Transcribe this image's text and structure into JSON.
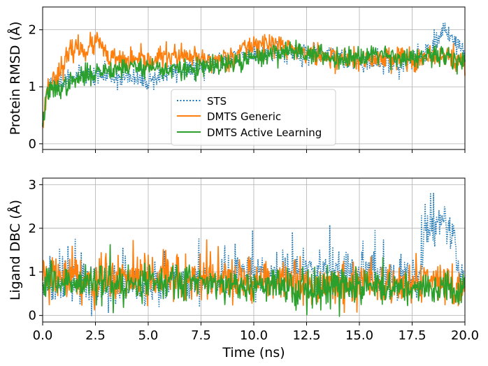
{
  "chart_data": [
    {
      "type": "line",
      "panel": "top",
      "ylabel": "Protein RMSD (Å)",
      "xlim": [
        0,
        20
      ],
      "ylim": [
        -0.1,
        2.4
      ],
      "yticks": [
        0,
        1,
        2
      ],
      "ytick_labels": [
        "0",
        "1",
        "2"
      ],
      "xticks": [
        0,
        2.5,
        5,
        7.5,
        10,
        12.5,
        15,
        17.5,
        20
      ],
      "grid": true,
      "legend_position": "lower-center",
      "legend": [
        "STS",
        "DMTS Generic",
        "DMTS Active Learning"
      ],
      "series": [
        {
          "name": "STS",
          "color": "#1f77b4",
          "style": "dotted",
          "noise": 0.09,
          "seed": 11,
          "x": [
            0,
            0.2,
            1,
            2,
            3,
            4,
            5,
            6,
            7,
            8,
            9,
            10,
            11,
            12,
            13,
            14,
            15,
            16,
            17,
            18,
            18.8,
            19,
            19.5,
            20
          ],
          "values": [
            0.3,
            1.0,
            1.15,
            1.2,
            1.2,
            1.15,
            1.1,
            1.25,
            1.3,
            1.4,
            1.55,
            1.55,
            1.65,
            1.6,
            1.55,
            1.55,
            1.45,
            1.45,
            1.4,
            1.55,
            1.85,
            2.05,
            1.8,
            1.6
          ]
        },
        {
          "name": "DMTS Generic",
          "color": "#ff7f0e",
          "style": "solid",
          "noise": 0.1,
          "seed": 23,
          "x": [
            0,
            0.2,
            1,
            1.5,
            2,
            2.7,
            3,
            4,
            5,
            6,
            7,
            8,
            9,
            10,
            11,
            12,
            13,
            14,
            15,
            16,
            17,
            18,
            19,
            20
          ],
          "values": [
            0.3,
            0.95,
            1.4,
            1.7,
            1.65,
            1.8,
            1.5,
            1.45,
            1.45,
            1.55,
            1.5,
            1.45,
            1.55,
            1.75,
            1.75,
            1.65,
            1.55,
            1.5,
            1.45,
            1.5,
            1.55,
            1.45,
            1.55,
            1.4
          ]
        },
        {
          "name": "DMTS Active Learning",
          "color": "#2ca02c",
          "style": "solid",
          "noise": 0.09,
          "seed": 37,
          "x": [
            0,
            0.2,
            1,
            2,
            3,
            4,
            5,
            6,
            7,
            8,
            9,
            10,
            11,
            12,
            13,
            14,
            15,
            16,
            17,
            18,
            19,
            20
          ],
          "values": [
            0.3,
            0.9,
            1.0,
            1.2,
            1.3,
            1.35,
            1.35,
            1.3,
            1.3,
            1.35,
            1.4,
            1.5,
            1.6,
            1.65,
            1.55,
            1.5,
            1.55,
            1.6,
            1.5,
            1.5,
            1.55,
            1.45
          ]
        }
      ]
    },
    {
      "type": "line",
      "panel": "bottom",
      "ylabel": "Ligand DBC (Å)",
      "xlabel": "Time (ns)",
      "xlim": [
        0,
        20
      ],
      "ylim": [
        -0.15,
        3.15
      ],
      "yticks": [
        0,
        1,
        2,
        3
      ],
      "ytick_labels": [
        "0",
        "1",
        "2",
        "3"
      ],
      "xticks": [
        0,
        2.5,
        5,
        7.5,
        10,
        12.5,
        15,
        17.5,
        20
      ],
      "xtick_labels": [
        "0.0",
        "2.5",
        "5.0",
        "7.5",
        "10.0",
        "12.5",
        "15.0",
        "17.5",
        "20.0"
      ],
      "grid": true,
      "series": [
        {
          "name": "STS",
          "color": "#1f77b4",
          "style": "dotted",
          "noise": 0.22,
          "seed": 51,
          "spikes": 0.09,
          "spike_amp": 0.9,
          "x": [
            0,
            2,
            4,
            6,
            8,
            9,
            10,
            12,
            14,
            15,
            16,
            17,
            17.9,
            18.1,
            18.5,
            19,
            19.5,
            19.7,
            20
          ],
          "values": [
            0.7,
            0.7,
            0.7,
            0.72,
            0.75,
            0.95,
            0.95,
            1.05,
            1.05,
            0.95,
            0.9,
            0.85,
            0.9,
            1.95,
            2.0,
            2.1,
            1.9,
            1.0,
            0.9
          ]
        },
        {
          "name": "DMTS Generic",
          "color": "#ff7f0e",
          "style": "solid",
          "noise": 0.24,
          "seed": 67,
          "spikes": 0.04,
          "spike_amp": 0.6,
          "x": [
            0,
            1,
            2,
            3,
            4,
            5,
            6,
            7,
            8,
            9,
            10,
            11,
            12,
            13,
            14,
            15,
            16,
            17,
            18,
            19,
            20
          ],
          "values": [
            0.8,
            0.9,
            0.85,
            0.8,
            0.8,
            0.78,
            0.8,
            0.8,
            0.78,
            0.72,
            0.72,
            0.75,
            0.72,
            0.7,
            0.7,
            0.7,
            0.68,
            0.65,
            0.68,
            0.68,
            0.65
          ]
        },
        {
          "name": "DMTS Active Learning",
          "color": "#2ca02c",
          "style": "solid",
          "noise": 0.2,
          "seed": 83,
          "spikes": 0.03,
          "spike_amp": 0.5,
          "x": [
            0,
            2,
            4,
            6,
            8,
            10,
            12,
            14,
            16,
            18,
            20
          ],
          "values": [
            0.75,
            0.75,
            0.72,
            0.75,
            0.75,
            0.65,
            0.65,
            0.65,
            0.65,
            0.62,
            0.62
          ]
        }
      ]
    }
  ]
}
